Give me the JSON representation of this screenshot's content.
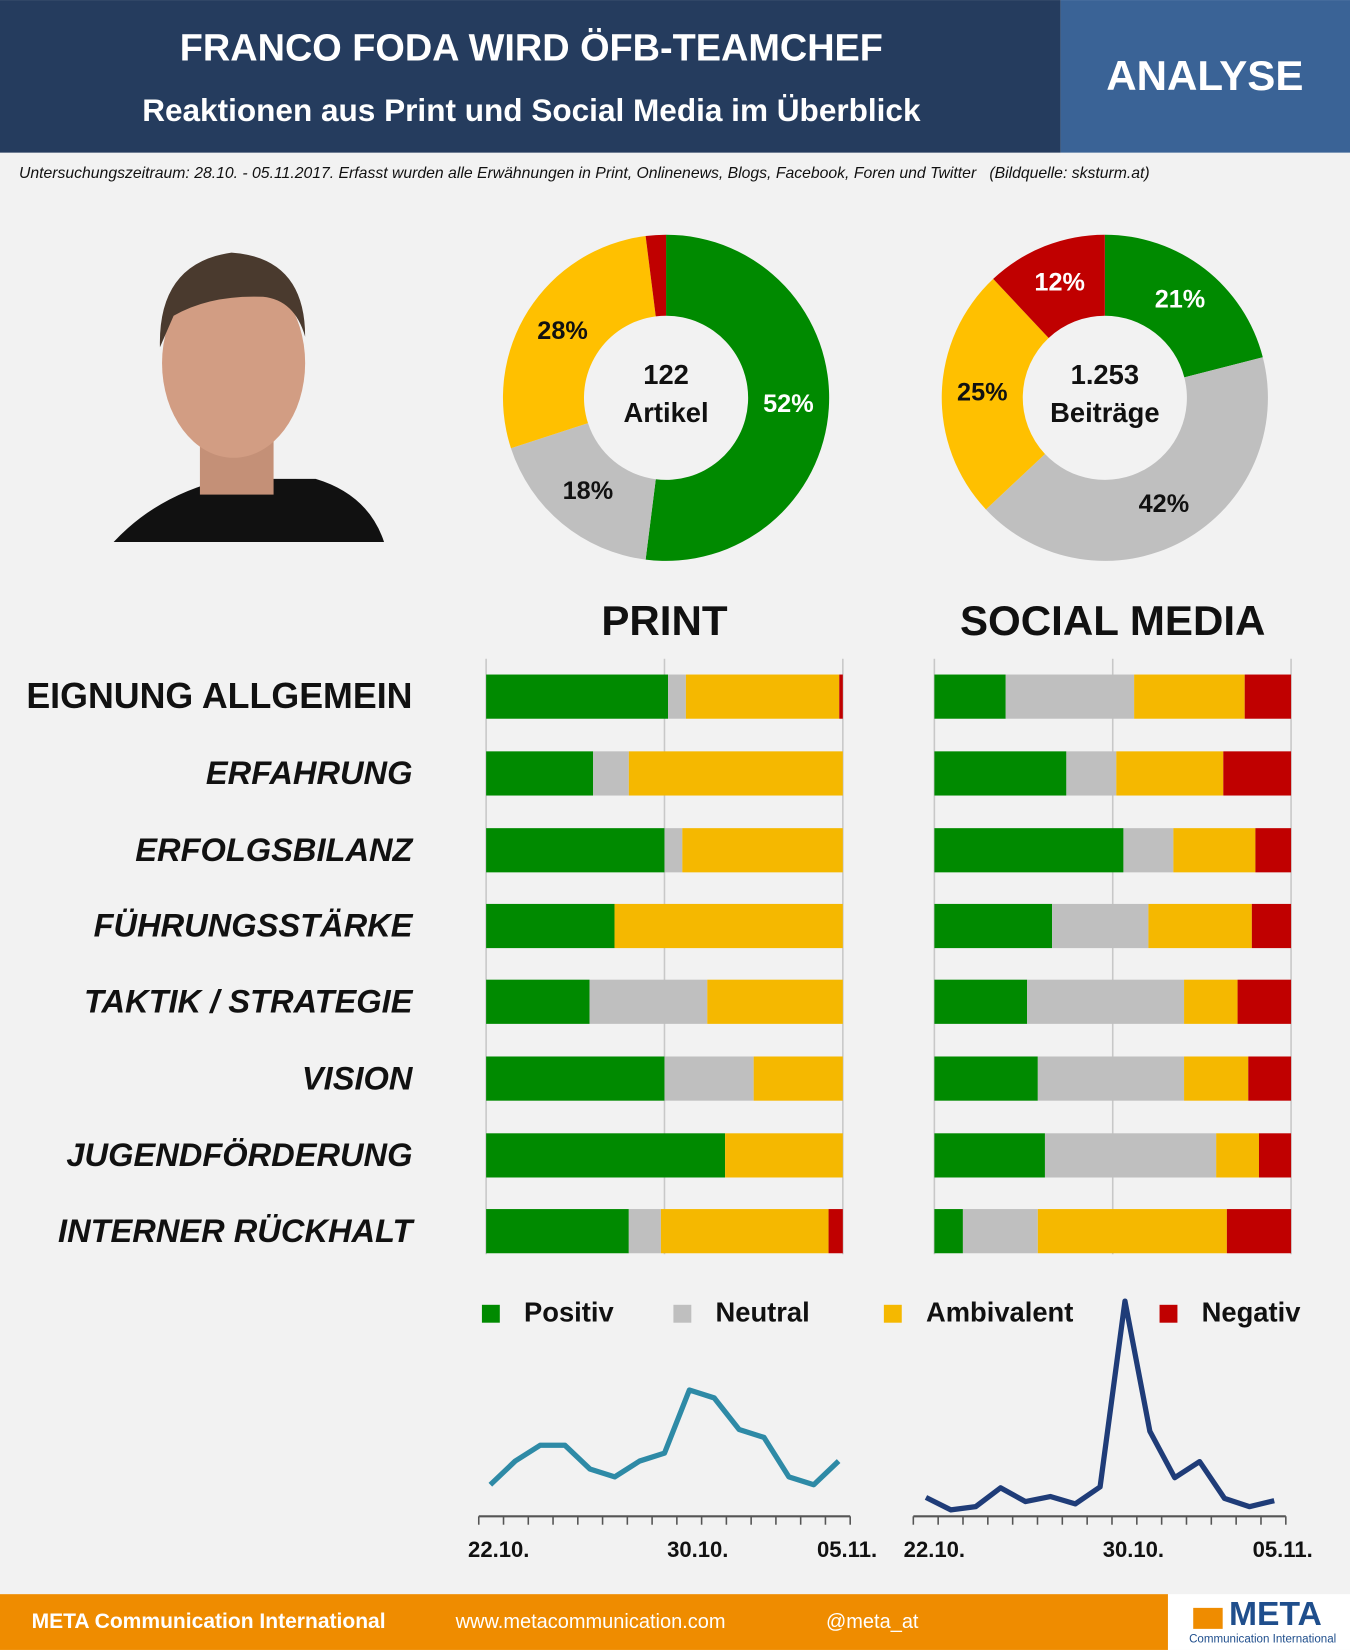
{
  "header": {
    "title": "FRANCO FODA WIRD ÖFB-TEAMCHEF",
    "subtitle": "Reaktionen aus Print und Social Media im Überblick",
    "badge": "ANALYSE",
    "note": "Untersuchungszeitraum: 28.10. - 05.11.2017. Erfasst wurden alle Erwähnungen in Print, Onlinenews, Blogs, Facebook, Foren und Twitter   (Bildquelle: sksturm.at)"
  },
  "chart_data": [
    {
      "type": "pie",
      "total": 122,
      "total_label": "Artikel",
      "values": [
        52,
        18,
        28,
        2
      ],
      "value_labels": [
        "52%",
        "18%",
        "28%",
        null
      ],
      "colors": [
        "#008a00",
        "#bfbfbf",
        "#ffc000",
        "#c00000"
      ]
    },
    {
      "type": "pie",
      "total": {
        "value": 1253,
        "label": "1.253"
      },
      "total_label": "Beiträge",
      "values": [
        21,
        42,
        25,
        12
      ],
      "value_labels": [
        "21%",
        "42%",
        "25%",
        "12%"
      ],
      "colors": [
        "#008a00",
        "#bfbfbf",
        "#ffc000",
        "#c00000"
      ]
    },
    {
      "type": "bar",
      "title": "PRINT",
      "orientation": "horizontal",
      "stacked": true,
      "categories": [
        "EIGNUNG ALLGEMEIN",
        "ERFAHRUNG",
        "ERFOLGSBILANZ",
        "FÜHRUNGSSTÄRKE",
        "TAKTIK / STRATEGIE",
        "VISION",
        "JUGENDFÖRDERUNG",
        "INTERNER RÜCKHALT"
      ],
      "series": [
        {
          "name": "Positiv",
          "color": "#008a00",
          "values": [
            51,
            30,
            50,
            36,
            29,
            50,
            67,
            40
          ]
        },
        {
          "name": "Neutral",
          "color": "#bfbfbf",
          "values": [
            5,
            10,
            5,
            0,
            33,
            25,
            0,
            9
          ]
        },
        {
          "name": "Ambivalent",
          "color": "#f5b800",
          "values": [
            43,
            60,
            45,
            64,
            38,
            25,
            33,
            47
          ]
        },
        {
          "name": "Negativ",
          "color": "#c00000",
          "values": [
            1,
            0,
            0,
            0,
            0,
            0,
            0,
            4
          ]
        }
      ],
      "xlim": [
        0,
        100
      ],
      "xticks": [
        0,
        50,
        100
      ],
      "grid": true,
      "tick_labels": false,
      "legend": "bottom"
    },
    {
      "type": "bar",
      "title": "SOCIAL MEDIA",
      "orientation": "horizontal",
      "stacked": true,
      "series": [
        {
          "color": "#008a00",
          "values": [
            20,
            37,
            53,
            33,
            26,
            29,
            31,
            8
          ]
        },
        {
          "color": "#bfbfbf",
          "values": [
            36,
            14,
            14,
            27,
            44,
            41,
            48,
            21
          ]
        },
        {
          "color": "#f5b800",
          "values": [
            31,
            30,
            23,
            29,
            15,
            18,
            12,
            53
          ]
        },
        {
          "color": "#c00000",
          "values": [
            13,
            19,
            10,
            11,
            15,
            12,
            9,
            18
          ]
        }
      ],
      "xlim": [
        0,
        100
      ],
      "xticks": [
        0,
        50,
        100
      ],
      "grid": true,
      "tick_labels": false
    },
    {
      "type": "line",
      "color": "#2e8aa6",
      "categories": [
        "22.10.",
        null,
        null,
        null,
        null,
        null,
        null,
        null,
        "30.10.",
        null,
        null,
        null,
        null,
        null,
        "05.11."
      ],
      "values": [
        4,
        7,
        9,
        9,
        6,
        5,
        7,
        8,
        16,
        15,
        11,
        10,
        5,
        4,
        7
      ],
      "ylim": [
        0,
        18
      ]
    },
    {
      "type": "line",
      "color": "#1f3c78",
      "categories": [
        "22.10.",
        null,
        null,
        null,
        null,
        null,
        null,
        null,
        "30.10.",
        null,
        null,
        null,
        null,
        null,
        "05.11."
      ],
      "values": [
        41,
        14,
        21,
        62,
        32,
        43,
        27,
        64,
        468,
        185,
        84,
        119,
        39,
        21,
        34
      ],
      "ylim": [
        0,
        540
      ]
    }
  ],
  "footer": {
    "company": "META Communication International",
    "website": "www.metacommunication.com",
    "handle": "@meta_at",
    "logo": "META",
    "logo_subtitle": "Communication International"
  }
}
